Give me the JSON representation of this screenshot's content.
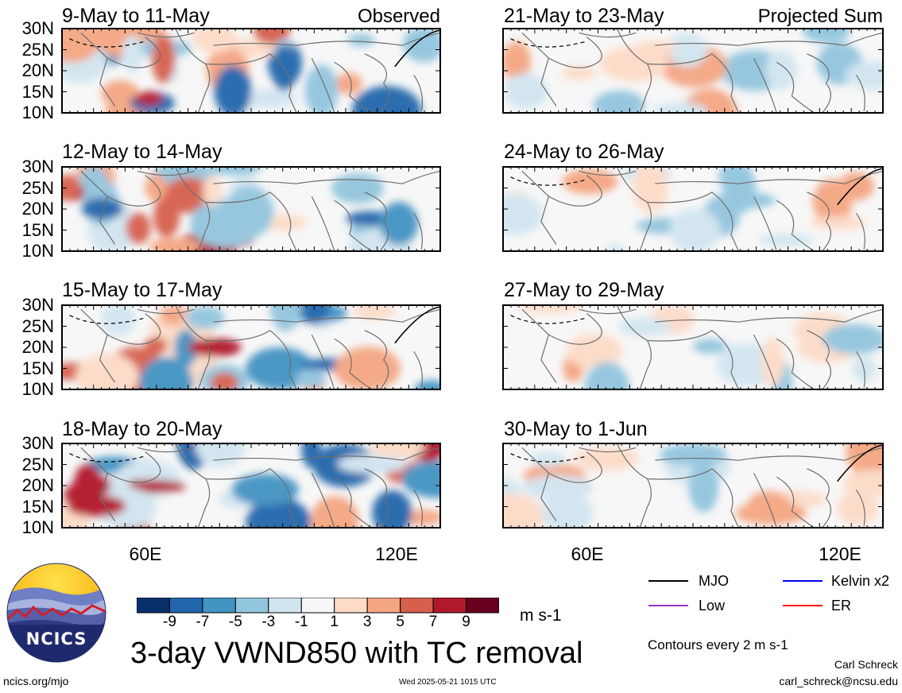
{
  "panels_left": [
    {
      "title": "9-May to 11-May",
      "label": "Observed"
    },
    {
      "title": "12-May to 14-May",
      "label": ""
    },
    {
      "title": "15-May to 17-May",
      "label": ""
    },
    {
      "title": "18-May to 20-May",
      "label": ""
    }
  ],
  "panels_right": [
    {
      "title": "21-May to 23-May",
      "label": "Projected Sum"
    },
    {
      "title": "24-May to 26-May",
      "label": ""
    },
    {
      "title": "27-May to 29-May",
      "label": ""
    },
    {
      "title": "30-May to 1-Jun",
      "label": ""
    }
  ],
  "lat_labels": [
    "30N",
    "25N",
    "20N",
    "15N",
    "10N"
  ],
  "lon_labels": [
    "60E",
    "120E"
  ],
  "colorbar": {
    "labels": [
      "-9",
      "-7",
      "-5",
      "-3",
      "-1",
      "1",
      "3",
      "5",
      "7",
      "9"
    ],
    "colors": [
      "#08306b",
      "#2166ac",
      "#4393c3",
      "#92c5de",
      "#d1e5f0",
      "#f7f7f7",
      "#fddbc7",
      "#f4a582",
      "#d6604d",
      "#b2182b",
      "#67001f"
    ],
    "units": "m s-1"
  },
  "legend": {
    "items": [
      {
        "label": "MJO",
        "color": "#000000"
      },
      {
        "label": "Kelvin x2",
        "color": "#0000ff"
      },
      {
        "label": "Low",
        "color": "#9933cc"
      },
      {
        "label": "ER",
        "color": "#ff0000"
      }
    ],
    "contour_note": "Contours every 2 m s-1"
  },
  "main_title": "3-day VWND850 with TC removal",
  "logo_text": "NCICS",
  "footer": {
    "url": "ncics.org/mjo",
    "timestamp": "Wed 2025-05-21 1015 UTC",
    "author": "Carl Schreck",
    "email": "carl_schreck@ncsu.edu"
  }
}
